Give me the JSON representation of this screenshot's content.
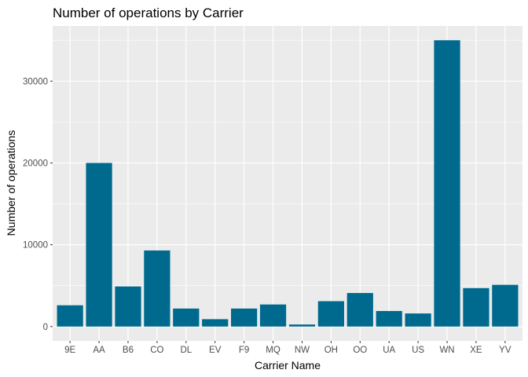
{
  "chart_data": {
    "type": "bar",
    "title": "Number of operations by Carrier",
    "xlabel": "Carrier Name",
    "ylabel": "Number of operations",
    "categories": [
      "9E",
      "AA",
      "B6",
      "CO",
      "DL",
      "EV",
      "F9",
      "MQ",
      "NW",
      "OH",
      "OO",
      "UA",
      "US",
      "WN",
      "XE",
      "YV"
    ],
    "values": [
      2600,
      20000,
      4900,
      9300,
      2200,
      900,
      2200,
      2700,
      250,
      3100,
      4100,
      1900,
      1600,
      35000,
      4700,
      5100
    ],
    "yticks": [
      0,
      10000,
      20000,
      30000
    ],
    "ylim": [
      -1750,
      36750
    ],
    "bar_color": "#006a8e",
    "panel_background": "#ebebeb",
    "grid_color": "#ffffff",
    "grid": true,
    "legend": "none"
  }
}
